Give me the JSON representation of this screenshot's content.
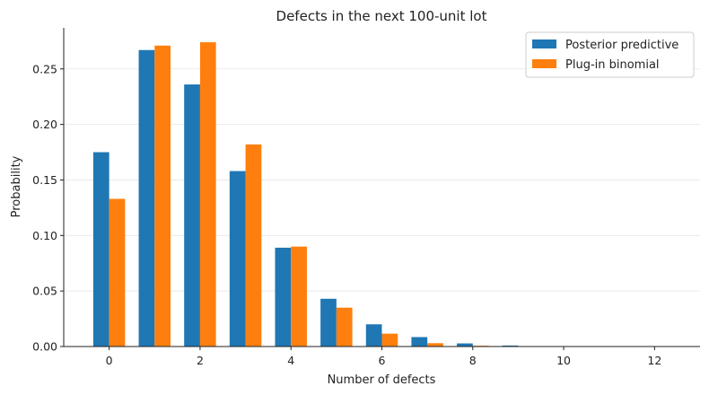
{
  "chart_data": {
    "type": "bar",
    "title": "Defects in the next 100-unit lot",
    "xlabel": "Number of defects",
    "ylabel": "Probability",
    "x": [
      0,
      1,
      2,
      3,
      4,
      5,
      6,
      7,
      8,
      9,
      10,
      11,
      12
    ],
    "series": [
      {
        "name": "Posterior predictive",
        "color": "#1f77b4",
        "values": [
          0.175,
          0.267,
          0.236,
          0.158,
          0.089,
          0.043,
          0.02,
          0.0085,
          0.0028,
          0.0009,
          0.0003,
          0.0001,
          0.0
        ]
      },
      {
        "name": "Plug-in binomial",
        "color": "#ff7f0e",
        "values": [
          0.133,
          0.271,
          0.274,
          0.182,
          0.09,
          0.035,
          0.0116,
          0.003,
          0.0007,
          0.0001,
          0.0,
          0.0,
          0.0
        ]
      }
    ],
    "xticks": [
      "0",
      "2",
      "4",
      "6",
      "8",
      "10",
      "12"
    ],
    "yticks": [
      "0.00",
      "0.05",
      "0.10",
      "0.15",
      "0.20",
      "0.25"
    ],
    "xlim": [
      -1,
      13
    ],
    "ylim": [
      0,
      0.287
    ],
    "grid": "horizontal",
    "legend_position": "top-right"
  }
}
